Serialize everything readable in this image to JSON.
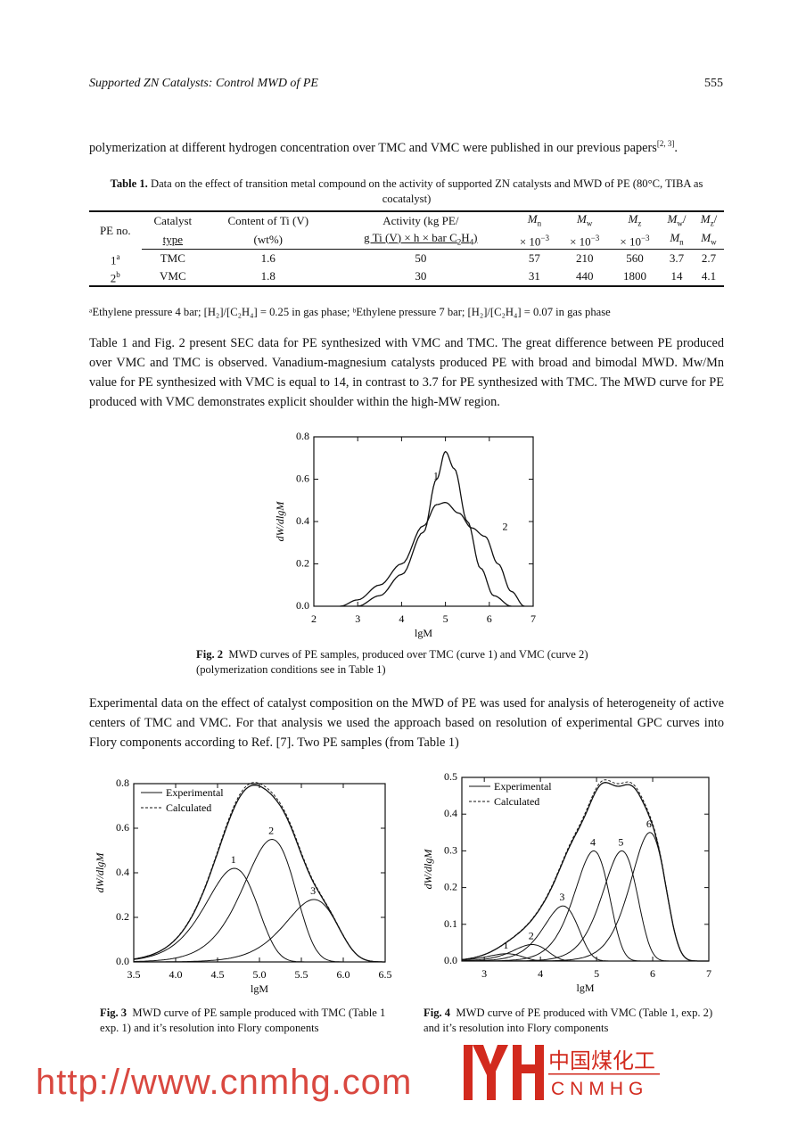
{
  "header": {
    "running_title": "Supported ZN Catalysts: Control MWD of PE",
    "page_number": "555"
  },
  "paragraphs": {
    "p1": "polymerization at different hydrogen concentration over TMC and VMC were published in our previous papers",
    "p1_ref": "[2, 3]",
    "p1_end": ".",
    "p2": "Table 1 and Fig. 2 present SEC data for PE synthesized with VMC and TMC. The great difference between PE produced over VMC and TMC is observed. Vanadium-magnesium catalysts produced PE with broad and bimodal MWD. Mw/Mn value for PE synthesized with VMC is equal to 14, in contrast to 3.7 for PE synthesized with TMC. The MWD curve for PE produced with VMC demonstrates explicit shoulder within the high-MW region.",
    "p3": "Experimental data on the effect of catalyst composition on the MWD of PE was used for analysis of heterogeneity of active centers of TMC and VMC. For that analysis we used the approach based on resolution of experimental GPC curves into Flory components according to Ref. [7]. Two PE samples (from Table 1)"
  },
  "table1": {
    "label": "Table 1.",
    "caption": "Data on the effect of transition metal compound on the activity of supported ZN catalysts and MWD of PE (80°C, TIBA as cocatalyst)",
    "headers": {
      "pe_no": "PE no.",
      "catalyst": [
        "Catalyst",
        "type"
      ],
      "content": [
        "Content of Ti (V)",
        "(wt%)"
      ],
      "activity": [
        "Activity (kg PE/",
        "g Ti (V) × h × bar C",
        "2",
        "H",
        "4",
        ")"
      ],
      "mn": [
        "M",
        "n",
        "× 10",
        "−3"
      ],
      "mw": [
        "M",
        "w",
        "× 10",
        "−3"
      ],
      "mz": [
        "M",
        "z",
        "× 10",
        "−3"
      ],
      "mwmn": [
        "M",
        "w",
        "/",
        "M",
        "n"
      ],
      "mzmw": [
        "M",
        "z",
        "/",
        "M",
        "w"
      ]
    },
    "rows": [
      {
        "pe_no": "1",
        "mark": "a",
        "catalyst": "TMC",
        "content": "1.6",
        "activity": "50",
        "mn": "57",
        "mw": "210",
        "mz": "560",
        "mwmn": "3.7",
        "mzmw": "2.7"
      },
      {
        "pe_no": "2",
        "mark": "b",
        "catalyst": "VMC",
        "content": "1.8",
        "activity": "30",
        "mn": "31",
        "mw": "440",
        "mz": "1800",
        "mwmn": "14",
        "mzmw": "4.1"
      }
    ],
    "footnote": "ᵃEthylene pressure 4 bar; [H₂]/[C₂H₄] = 0.25 in gas phase; ᵇEthylene pressure 7 bar; [H₂]/[C₂H₄] = 0.07 in gas phase"
  },
  "figures": {
    "fig2": {
      "label": "Fig. 2",
      "caption": "MWD curves of PE samples, produced over TMC (curve 1) and VMC (curve 2) (polymerization conditions see in Table 1)"
    },
    "fig3": {
      "label": "Fig. 3",
      "caption": "MWD curve of PE sample produced with TMC (Table 1 exp. 1) and it’s resolution into Flory components"
    },
    "fig4": {
      "label": "Fig. 4",
      "caption": "MWD curve of PE produced with VMC (Table 1, exp. 2) and it’s resolution into Flory components"
    }
  },
  "chart_data": [
    {
      "id": "fig2",
      "type": "line",
      "xlabel": "lgM",
      "ylabel": "dW/dlgM",
      "xlim": [
        2,
        7
      ],
      "ylim": [
        0,
        0.8
      ],
      "xticks": [
        "2",
        "3",
        "4",
        "5",
        "6",
        "7"
      ],
      "yticks": [
        "0.0",
        "0.2",
        "0.4",
        "0.6",
        "0.8"
      ],
      "grid": false,
      "series": [
        {
          "name": "1",
          "x": [
            3.0,
            3.5,
            4.0,
            4.5,
            4.8,
            5.0,
            5.2,
            5.5,
            5.8,
            6.1,
            6.5
          ],
          "y": [
            0,
            0.05,
            0.15,
            0.35,
            0.6,
            0.73,
            0.65,
            0.4,
            0.18,
            0.05,
            0
          ]
        },
        {
          "name": "2",
          "x": [
            2.6,
            3.0,
            3.5,
            4.0,
            4.5,
            4.8,
            5.0,
            5.3,
            5.6,
            5.9,
            6.2,
            6.5,
            6.8
          ],
          "y": [
            0,
            0.03,
            0.1,
            0.2,
            0.38,
            0.48,
            0.49,
            0.44,
            0.37,
            0.33,
            0.2,
            0.07,
            0
          ]
        }
      ]
    },
    {
      "id": "fig3",
      "type": "line",
      "xlabel": "lgM",
      "ylabel": "dW/dlgM",
      "xlim": [
        3.5,
        6.5
      ],
      "ylim": [
        0,
        0.8
      ],
      "xticks": [
        "3.5",
        "4.0",
        "4.5",
        "5.0",
        "5.5",
        "6.0",
        "6.5"
      ],
      "yticks": [
        "0.0",
        "0.2",
        "0.4",
        "0.6",
        "0.8"
      ],
      "grid": false,
      "legend": {
        "position": "top-left",
        "entries": [
          "Experimental",
          "Calculated"
        ]
      },
      "components": [
        {
          "name": "1",
          "peak_lgM": 4.7,
          "peak": 0.42
        },
        {
          "name": "2",
          "peak_lgM": 5.15,
          "peak": 0.55
        },
        {
          "name": "3",
          "peak_lgM": 5.65,
          "peak": 0.28
        }
      ]
    },
    {
      "id": "fig4",
      "type": "line",
      "xlabel": "lgM",
      "ylabel": "dW/dlgM",
      "xlim": [
        2.6,
        7
      ],
      "ylim": [
        0,
        0.5
      ],
      "xticks": [
        "3",
        "4",
        "5",
        "6",
        "7"
      ],
      "yticks": [
        "0.0",
        "0.1",
        "0.2",
        "0.3",
        "0.4",
        "0.5"
      ],
      "grid": false,
      "legend": {
        "position": "top-left",
        "entries": [
          "Experimental",
          "Calculated"
        ]
      },
      "components": [
        {
          "name": "1",
          "peak_lgM": 3.4,
          "peak": 0.02
        },
        {
          "name": "2",
          "peak_lgM": 3.85,
          "peak": 0.045
        },
        {
          "name": "3",
          "peak_lgM": 4.4,
          "peak": 0.15
        },
        {
          "name": "4",
          "peak_lgM": 4.95,
          "peak": 0.3
        },
        {
          "name": "5",
          "peak_lgM": 5.45,
          "peak": 0.3
        },
        {
          "name": "6",
          "peak_lgM": 5.95,
          "peak": 0.35
        }
      ]
    }
  ],
  "watermark": {
    "url_text": "http://www.cnmhg.com",
    "logo_cn": "中国煤化工",
    "logo_en": "CNMHG",
    "color": "#d22a1e"
  }
}
